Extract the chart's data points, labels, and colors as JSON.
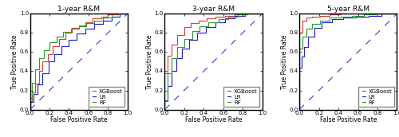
{
  "titles": [
    "1-year R&M",
    "3-year R&M",
    "5-year R&M"
  ],
  "xlabel": "False Positive Rate",
  "ylabel": "True Positive Rate",
  "diagonal_color": "#2a2acc",
  "colors": {
    "XGBoost": "#d94040",
    "LR": "#2424cc",
    "RF": "#2da02d"
  },
  "linewidth": 0.85,
  "panel1": {
    "XGBoost": {
      "fpr": [
        0.0,
        0.0,
        0.02,
        0.02,
        0.05,
        0.05,
        0.09,
        0.09,
        0.13,
        0.13,
        0.18,
        0.18,
        0.23,
        0.23,
        0.3,
        0.3,
        0.36,
        0.36,
        0.43,
        0.43,
        0.5,
        0.5,
        0.57,
        0.57,
        0.64,
        0.64,
        0.73,
        0.73,
        0.8,
        0.8,
        0.9,
        0.9,
        1.0
      ],
      "tpr": [
        0.0,
        0.09,
        0.09,
        0.18,
        0.18,
        0.27,
        0.27,
        0.4,
        0.4,
        0.5,
        0.5,
        0.58,
        0.58,
        0.66,
        0.66,
        0.74,
        0.74,
        0.8,
        0.8,
        0.85,
        0.85,
        0.88,
        0.88,
        0.91,
        0.91,
        0.95,
        0.95,
        0.97,
        0.97,
        0.99,
        0.99,
        1.0,
        1.0
      ]
    },
    "LR": {
      "fpr": [
        0.0,
        0.0,
        0.04,
        0.04,
        0.08,
        0.08,
        0.13,
        0.13,
        0.19,
        0.19,
        0.25,
        0.25,
        0.32,
        0.32,
        0.4,
        0.4,
        0.48,
        0.48,
        0.57,
        0.57,
        0.66,
        0.66,
        0.75,
        0.75,
        0.84,
        0.84,
        0.92,
        0.92,
        1.0
      ],
      "tpr": [
        0.0,
        0.08,
        0.08,
        0.16,
        0.16,
        0.26,
        0.26,
        0.38,
        0.38,
        0.5,
        0.5,
        0.58,
        0.58,
        0.66,
        0.66,
        0.73,
        0.73,
        0.79,
        0.79,
        0.84,
        0.84,
        0.89,
        0.89,
        0.93,
        0.93,
        0.97,
        0.97,
        1.0,
        1.0
      ]
    },
    "RF": {
      "fpr": [
        0.0,
        0.0,
        0.02,
        0.02,
        0.05,
        0.05,
        0.09,
        0.09,
        0.14,
        0.14,
        0.2,
        0.2,
        0.27,
        0.27,
        0.34,
        0.34,
        0.42,
        0.42,
        0.5,
        0.5,
        0.58,
        0.58,
        0.66,
        0.66,
        0.75,
        0.75,
        0.84,
        0.84,
        1.0
      ],
      "tpr": [
        0.0,
        0.12,
        0.12,
        0.28,
        0.28,
        0.42,
        0.42,
        0.54,
        0.54,
        0.62,
        0.62,
        0.7,
        0.7,
        0.76,
        0.76,
        0.81,
        0.81,
        0.84,
        0.84,
        0.87,
        0.87,
        0.9,
        0.9,
        0.93,
        0.93,
        0.96,
        0.96,
        1.0,
        1.0
      ]
    }
  },
  "panel2": {
    "XGBoost": {
      "fpr": [
        0.0,
        0.0,
        0.03,
        0.03,
        0.07,
        0.07,
        0.13,
        0.13,
        0.2,
        0.2,
        0.27,
        0.27,
        0.35,
        0.35,
        0.43,
        0.43,
        0.52,
        0.52,
        0.62,
        0.62,
        0.72,
        0.72,
        0.82,
        0.82,
        1.0
      ],
      "tpr": [
        0.0,
        0.38,
        0.38,
        0.56,
        0.56,
        0.68,
        0.68,
        0.78,
        0.78,
        0.86,
        0.86,
        0.9,
        0.9,
        0.93,
        0.93,
        0.95,
        0.95,
        0.97,
        0.97,
        0.98,
        0.98,
        0.99,
        0.99,
        1.0,
        1.0
      ]
    },
    "LR": {
      "fpr": [
        0.0,
        0.0,
        0.03,
        0.03,
        0.07,
        0.07,
        0.12,
        0.12,
        0.18,
        0.18,
        0.25,
        0.25,
        0.33,
        0.33,
        0.42,
        0.42,
        0.52,
        0.52,
        0.62,
        0.62,
        0.72,
        0.72,
        0.82,
        0.82,
        1.0
      ],
      "tpr": [
        0.0,
        0.1,
        0.1,
        0.25,
        0.25,
        0.4,
        0.4,
        0.54,
        0.54,
        0.64,
        0.64,
        0.73,
        0.73,
        0.8,
        0.8,
        0.86,
        0.86,
        0.91,
        0.91,
        0.95,
        0.95,
        0.98,
        0.98,
        1.0,
        1.0
      ]
    },
    "RF": {
      "fpr": [
        0.0,
        0.0,
        0.03,
        0.03,
        0.07,
        0.07,
        0.13,
        0.13,
        0.2,
        0.2,
        0.28,
        0.28,
        0.36,
        0.36,
        0.45,
        0.45,
        0.55,
        0.55,
        0.65,
        0.65,
        0.75,
        0.75,
        0.85,
        0.85,
        1.0
      ],
      "tpr": [
        0.0,
        0.09,
        0.09,
        0.38,
        0.38,
        0.54,
        0.54,
        0.65,
        0.65,
        0.74,
        0.74,
        0.82,
        0.82,
        0.87,
        0.87,
        0.91,
        0.91,
        0.94,
        0.94,
        0.97,
        0.97,
        0.99,
        0.99,
        1.0,
        1.0
      ]
    }
  },
  "panel3": {
    "XGBoost": {
      "fpr": [
        0.0,
        0.0,
        0.03,
        0.03,
        0.07,
        0.07,
        0.13,
        0.13,
        0.21,
        0.21,
        0.31,
        0.31,
        0.42,
        0.42,
        0.53,
        0.53,
        0.65,
        0.65,
        0.77,
        0.77,
        1.0
      ],
      "tpr": [
        0.0,
        0.8,
        0.8,
        0.93,
        0.93,
        0.96,
        0.96,
        0.97,
        0.97,
        0.98,
        0.98,
        0.99,
        0.99,
        1.0,
        1.0,
        1.0,
        1.0,
        1.0,
        1.0,
        1.0,
        1.0
      ]
    },
    "LR": {
      "fpr": [
        0.0,
        0.0,
        0.02,
        0.02,
        0.05,
        0.05,
        0.09,
        0.09,
        0.15,
        0.15,
        0.23,
        0.23,
        0.33,
        0.33,
        0.45,
        0.45,
        0.58,
        0.58,
        0.71,
        0.71,
        0.84,
        0.84,
        1.0
      ],
      "tpr": [
        0.0,
        0.44,
        0.44,
        0.55,
        0.55,
        0.65,
        0.65,
        0.76,
        0.76,
        0.85,
        0.85,
        0.91,
        0.91,
        0.94,
        0.94,
        0.96,
        0.96,
        0.97,
        0.97,
        0.98,
        0.98,
        1.0,
        1.0
      ]
    },
    "RF": {
      "fpr": [
        0.0,
        0.0,
        0.03,
        0.03,
        0.07,
        0.07,
        0.13,
        0.13,
        0.21,
        0.21,
        0.31,
        0.31,
        0.42,
        0.42,
        0.54,
        0.54,
        0.66,
        0.66,
        0.78,
        0.78,
        1.0
      ],
      "tpr": [
        0.0,
        0.64,
        0.64,
        0.76,
        0.76,
        0.84,
        0.84,
        0.89,
        0.89,
        0.93,
        0.93,
        0.96,
        0.96,
        0.97,
        0.97,
        0.98,
        0.98,
        0.99,
        0.99,
        1.0,
        1.0
      ]
    }
  },
  "legend_order": [
    "XGBoost",
    "LR",
    "RF"
  ],
  "tick_fontsize": 5.0,
  "label_fontsize": 5.5,
  "title_fontsize": 6.5,
  "legend_fontsize": 5.0,
  "xticks": [
    0.0,
    0.2,
    0.4,
    0.6,
    0.8,
    1.0
  ],
  "yticks": [
    0.0,
    0.2,
    0.4,
    0.6,
    0.8,
    1.0
  ]
}
